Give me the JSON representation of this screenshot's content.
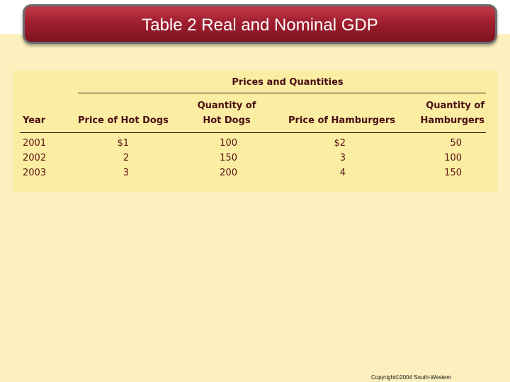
{
  "slide": {
    "title": "Table 2 Real and Nominal GDP",
    "copyright": "Copyright©2004  South-Western"
  },
  "table": {
    "group_header": "Prices and Quantities",
    "headers": {
      "year": "Year",
      "price_hot_dogs": "Price of Hot Dogs",
      "qty_hot_dogs_1": "Quantity of",
      "qty_hot_dogs_2": "Hot Dogs",
      "price_hamburgers": "Price of Hamburgers",
      "qty_hamburgers_1": "Quantity of",
      "qty_hamburgers_2": "Hamburgers"
    },
    "rows": [
      {
        "year": "2001",
        "price_hot_dogs": "$1",
        "qty_hot_dogs": "100",
        "price_hamburgers": "$2",
        "qty_hamburgers": "50"
      },
      {
        "year": "2002",
        "price_hot_dogs": "2",
        "qty_hot_dogs": "150",
        "price_hamburgers": "3",
        "qty_hamburgers": "100"
      },
      {
        "year": "2003",
        "price_hot_dogs": "3",
        "qty_hot_dogs": "200",
        "price_hamburgers": "4",
        "qty_hamburgers": "150"
      }
    ]
  },
  "colors": {
    "background": "#fdf0bf",
    "table_background": "#fbeda2",
    "title_bar": "#a01e2e",
    "text": "#5a1016"
  }
}
